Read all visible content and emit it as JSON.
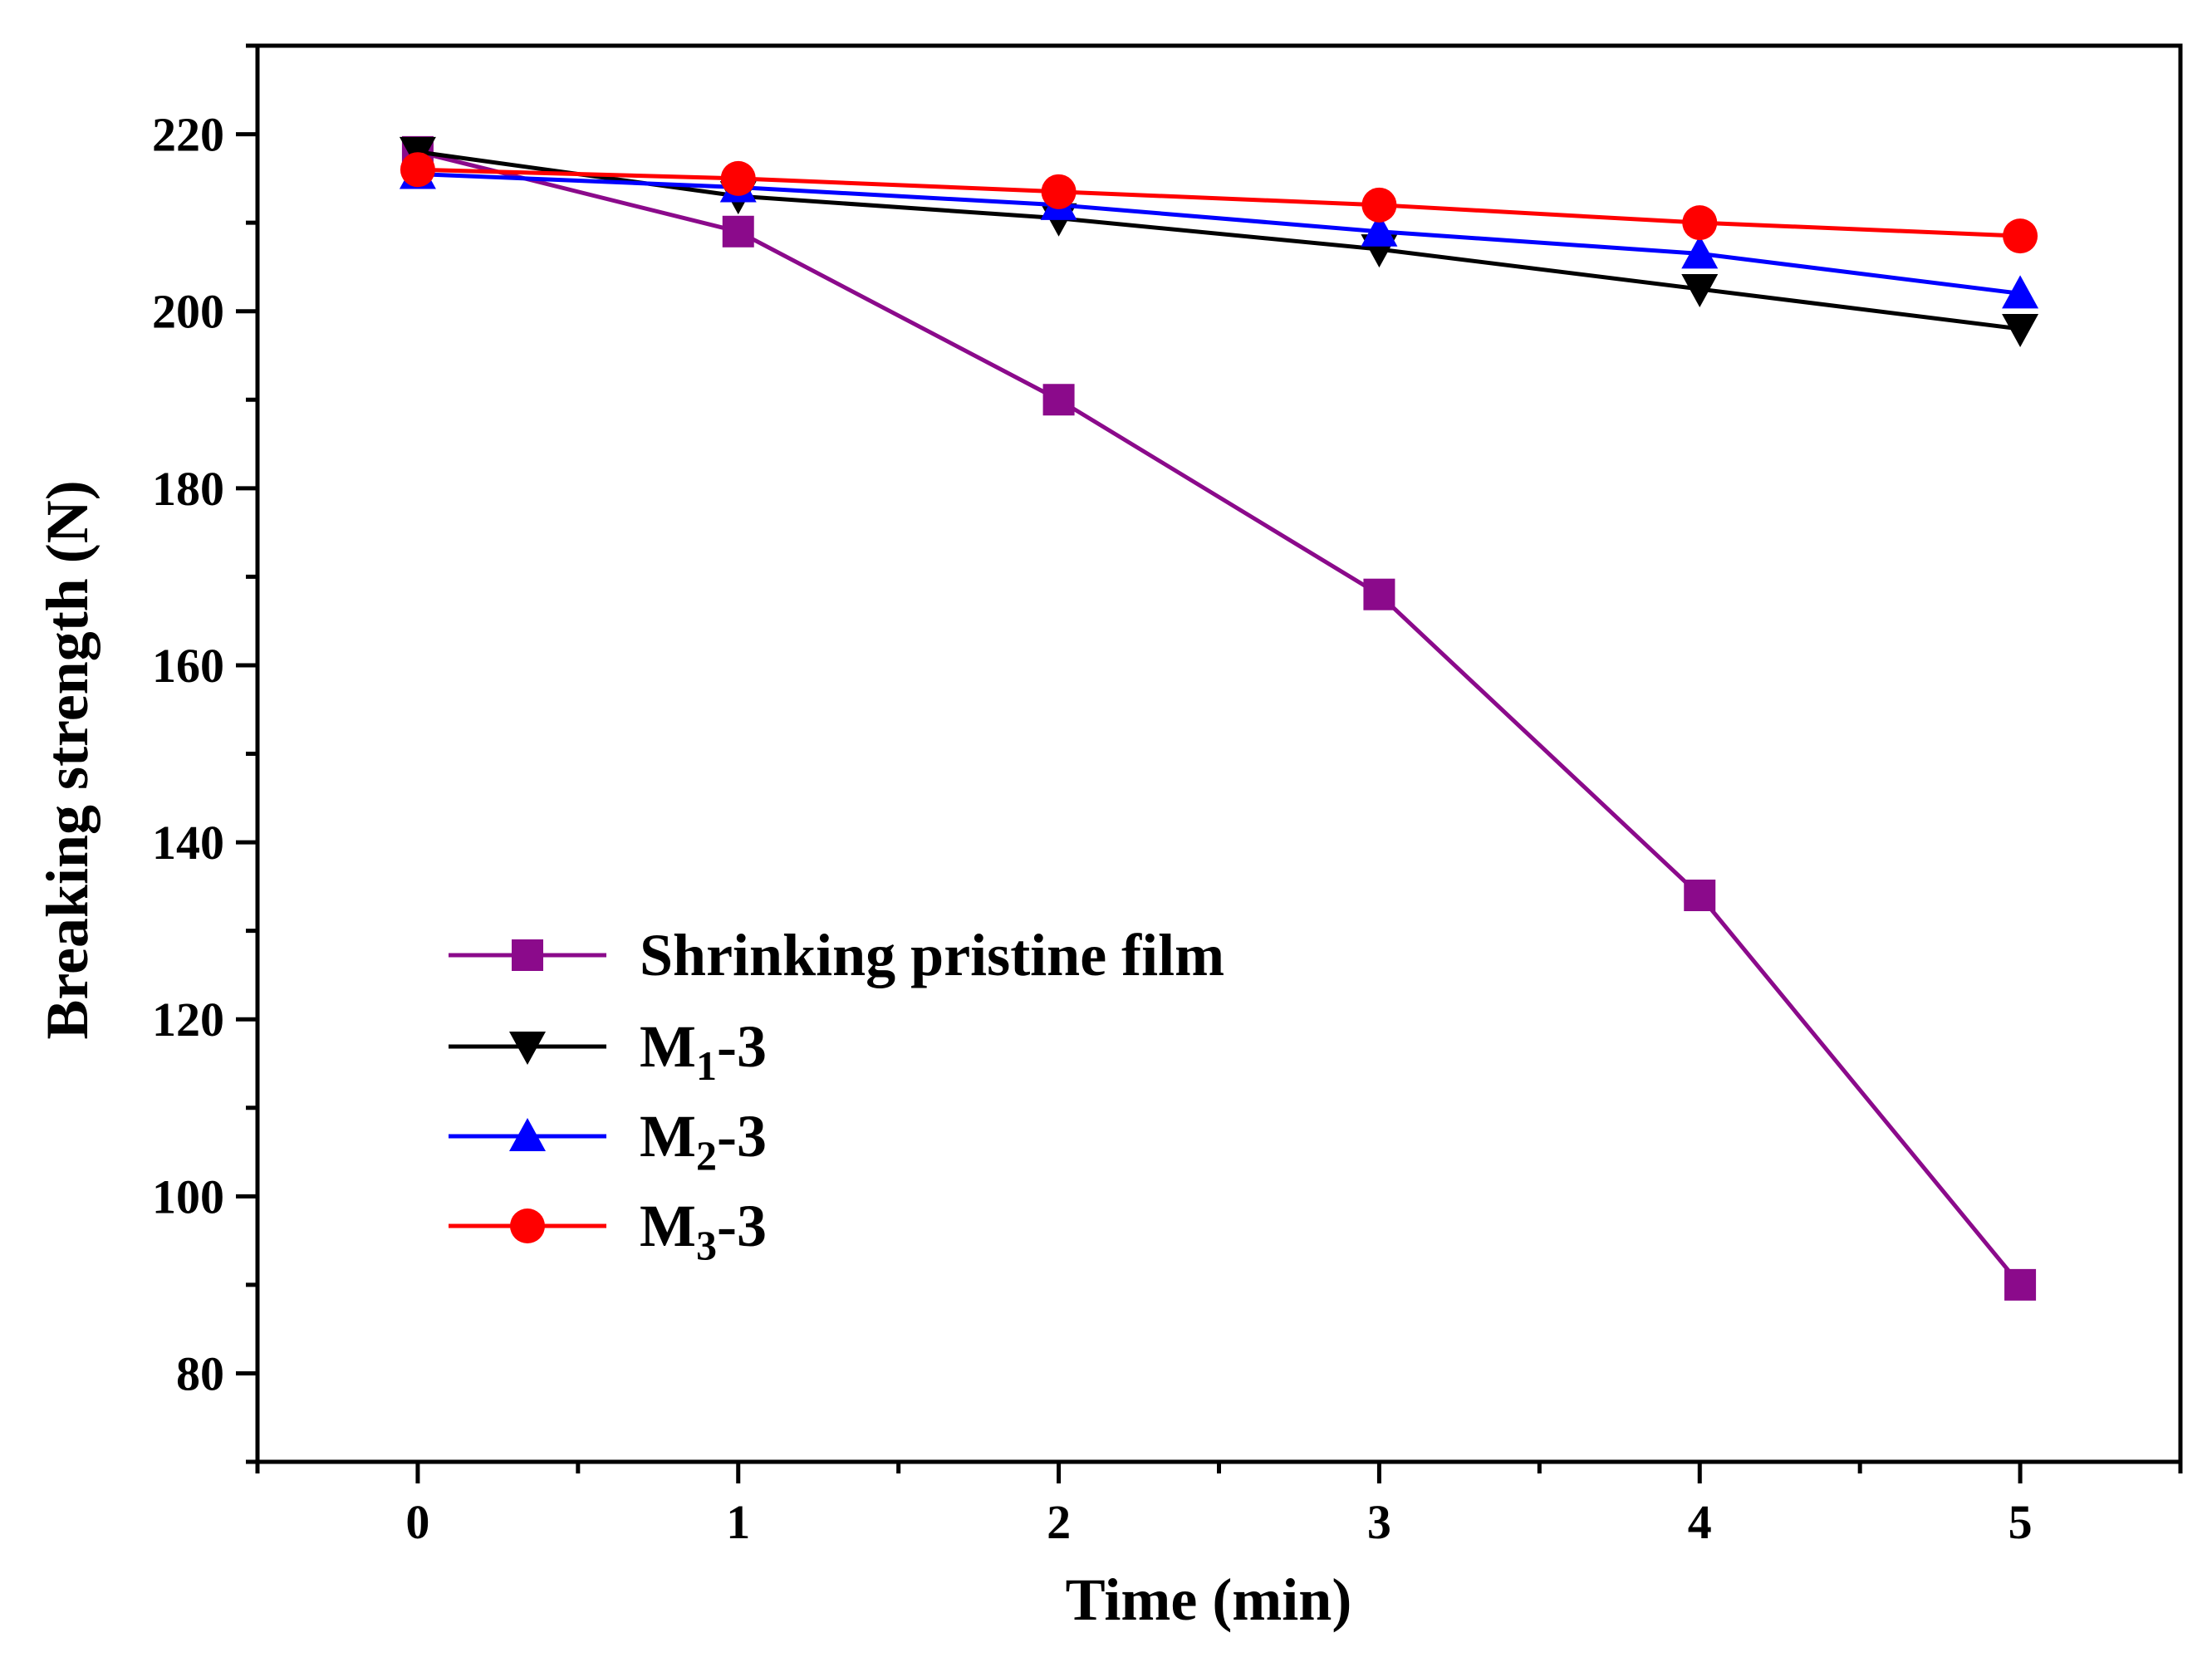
{
  "chart_data": {
    "type": "line",
    "title": "",
    "xlabel": "Time (min)",
    "ylabel": "Breaking strength (N)",
    "xlim": [
      -0.5,
      5.5
    ],
    "ylim": [
      70,
      230
    ],
    "x": [
      0,
      1,
      2,
      3,
      4,
      5
    ],
    "x_ticks": [
      "0",
      "1",
      "2",
      "3",
      "4",
      "5"
    ],
    "y_ticks": [
      "80",
      "100",
      "120",
      "140",
      "160",
      "180",
      "200",
      "220"
    ],
    "y_tick_values": [
      80,
      100,
      120,
      140,
      160,
      180,
      200,
      220
    ],
    "grid": false,
    "legend_position": "lower-left",
    "series": [
      {
        "name": "Shrinking pristine film",
        "label_main": "Shrinking pristine film",
        "label_sub": "",
        "label_tail": "",
        "color": "#8B0A8B",
        "marker": "square",
        "values": [
          218,
          209,
          190,
          168,
          134,
          90
        ]
      },
      {
        "name": "M1-3",
        "label_main": "M",
        "label_sub": "1",
        "label_tail": "-3",
        "color": "#000000",
        "marker": "triangle-down",
        "values": [
          218,
          213,
          210.5,
          207,
          202.5,
          198
        ]
      },
      {
        "name": "M2-3",
        "label_main": "M",
        "label_sub": "2",
        "label_tail": "-3",
        "color": "#0000FF",
        "marker": "triangle-up",
        "values": [
          215.5,
          214,
          212,
          209,
          206.5,
          202
        ]
      },
      {
        "name": "M3-3",
        "label_main": "M",
        "label_sub": "3",
        "label_tail": "-3",
        "color": "#FF0000",
        "marker": "circle",
        "values": [
          216,
          215,
          213.5,
          212,
          210,
          208.5
        ]
      }
    ]
  }
}
